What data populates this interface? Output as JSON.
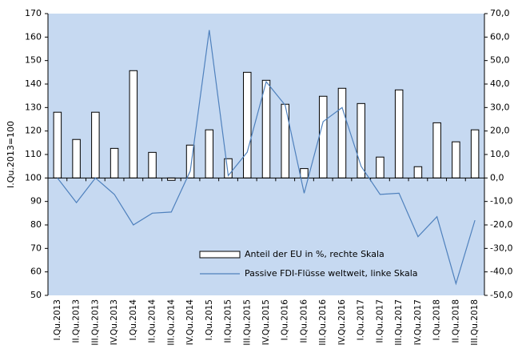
{
  "chart_data": {
    "type": "bar-line",
    "y_label": "I.Qu.2013=100",
    "categories": [
      "I.Qu.2013",
      "II.Qu.2013",
      "III.Qu.2013",
      "IV.Qu.2013",
      "I.Qu.2014",
      "II.Qu.2014",
      "III.Qu.2014",
      "IV.Qu.2014",
      "I.Qu.2015",
      "II.Qu.2015",
      "III.Qu.2015",
      "IV.Qu.2015",
      "I.Qu.2016",
      "II.Qu.2016",
      "III.Qu.2016",
      "IV.Qu.2016",
      "I.Qu.2017",
      "II.Qu.2017",
      "III.Qu.2017",
      "IV.Qu.2017",
      "I.Qu.2018",
      "II.Qu.2018",
      "III.Qu.2018"
    ],
    "series": [
      {
        "name": "Anteil der EU in %, rechte Skala",
        "type": "bar",
        "axis": "y2",
        "color": "#ffffff",
        "values": [
          28,
          16.4,
          28,
          12.6,
          45.7,
          10.9,
          -1,
          14,
          20.5,
          8.2,
          45,
          41.6,
          31.4,
          4,
          34.8,
          38.2,
          31.7,
          8.9,
          37.5,
          4.8,
          23.5,
          15.4,
          20.5
        ]
      },
      {
        "name": "Passive FDI-Flüsse weltweit, linke Skala",
        "type": "line",
        "axis": "y",
        "color": "#4f81bd",
        "values": [
          100,
          89.5,
          100,
          93,
          80,
          85,
          85.5,
          103,
          163,
          101,
          111,
          141,
          131,
          93.5,
          124,
          130,
          105,
          93,
          93.5,
          75,
          83.5,
          55,
          82
        ]
      }
    ],
    "ylim": [
      50,
      170
    ],
    "yticks": [
      50,
      60,
      70,
      80,
      90,
      100,
      110,
      120,
      130,
      140,
      150,
      160,
      170
    ],
    "y2lim": [
      -50,
      70
    ],
    "y2ticks": [
      {
        "value": -50,
        "label": "-50,0"
      },
      {
        "value": -40,
        "label": "-40,0"
      },
      {
        "value": -30,
        "label": "-30,0"
      },
      {
        "value": -20,
        "label": "-20,0"
      },
      {
        "value": -10,
        "label": "-10,0"
      },
      {
        "value": 0,
        "label": "0,0"
      },
      {
        "value": 10,
        "label": "10,0"
      },
      {
        "value": 20,
        "label": "20,0"
      },
      {
        "value": 30,
        "label": "30,0"
      },
      {
        "value": 40,
        "label": "40,0"
      },
      {
        "value": 50,
        "label": "50,0"
      },
      {
        "value": 60,
        "label": "60,0"
      },
      {
        "value": 70,
        "label": "70,0"
      }
    ],
    "plot_background": "#c6d9f1",
    "legend": "lower right"
  }
}
